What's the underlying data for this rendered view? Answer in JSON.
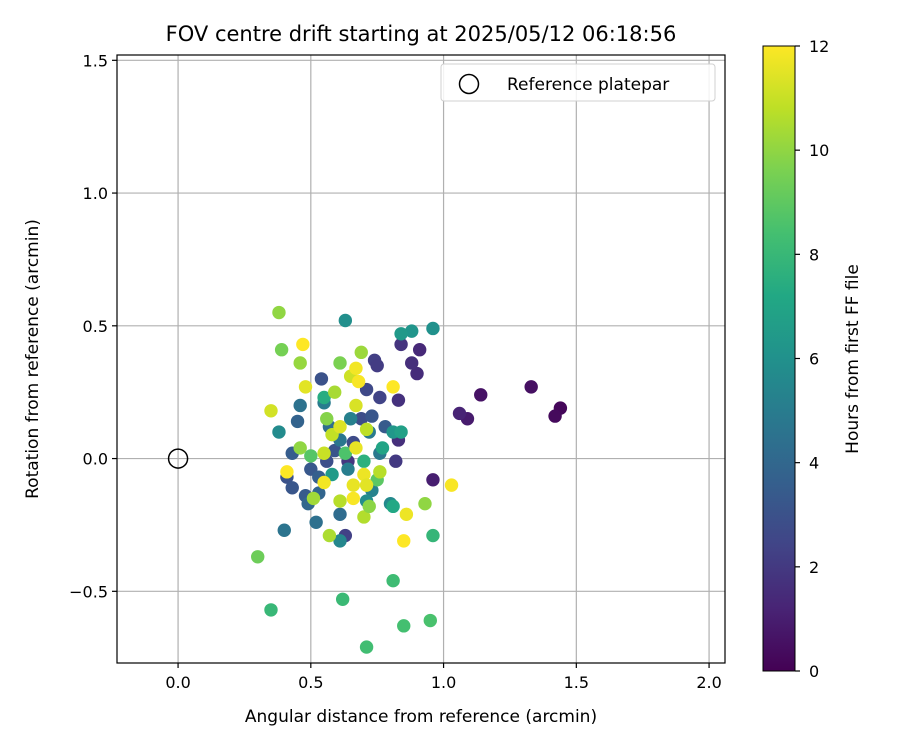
{
  "chart_data": {
    "type": "scatter",
    "title": "FOV centre drift starting at 2025/05/12 06:18:56",
    "xlabel": "Angular distance from reference (arcmin)",
    "ylabel": "Rotation from reference (arcmin)",
    "xlim": [
      -0.23,
      2.06
    ],
    "ylim": [
      -0.77,
      1.52
    ],
    "xticks": [
      0.0,
      0.5,
      1.0,
      1.5,
      2.0
    ],
    "xtick_labels": [
      "0.0",
      "0.5",
      "1.0",
      "1.5",
      "2.0"
    ],
    "yticks": [
      -0.5,
      0.0,
      0.5,
      1.0,
      1.5
    ],
    "ytick_labels": [
      "−0.5",
      "0.0",
      "0.5",
      "1.0",
      "1.5"
    ],
    "grid": true,
    "legend": {
      "placement": "top-right",
      "entries": [
        "Reference platepar"
      ]
    },
    "reference_point": {
      "x": 0.0,
      "y": 0.0,
      "label": "Reference platepar"
    },
    "colorbar": {
      "label": "Hours from first FF file",
      "colormap": "viridis",
      "range": [
        0,
        12
      ],
      "ticks": [
        0,
        2,
        4,
        6,
        8,
        10,
        12
      ],
      "tick_labels": [
        "0",
        "2",
        "4",
        "6",
        "8",
        "10",
        "12"
      ]
    },
    "points": [
      {
        "x": 1.44,
        "y": 0.19,
        "h": 0.2
      },
      {
        "x": 1.42,
        "y": 0.16,
        "h": 0.3
      },
      {
        "x": 1.33,
        "y": 0.27,
        "h": 0.5
      },
      {
        "x": 1.14,
        "y": 0.24,
        "h": 0.6
      },
      {
        "x": 1.09,
        "y": 0.15,
        "h": 0.9
      },
      {
        "x": 1.06,
        "y": 0.17,
        "h": 1.2
      },
      {
        "x": 0.96,
        "y": -0.08,
        "h": 1.0
      },
      {
        "x": 0.91,
        "y": 0.41,
        "h": 1.4
      },
      {
        "x": 0.9,
        "y": 0.32,
        "h": 1.5
      },
      {
        "x": 0.88,
        "y": 0.36,
        "h": 1.6
      },
      {
        "x": 0.84,
        "y": 0.43,
        "h": 1.8
      },
      {
        "x": 0.83,
        "y": 0.22,
        "h": 1.7
      },
      {
        "x": 0.83,
        "y": 0.07,
        "h": 1.6
      },
      {
        "x": 0.82,
        "y": -0.01,
        "h": 2.0
      },
      {
        "x": 0.74,
        "y": 0.37,
        "h": 2.2
      },
      {
        "x": 0.76,
        "y": 0.23,
        "h": 2.4
      },
      {
        "x": 0.75,
        "y": 0.35,
        "h": 2.1
      },
      {
        "x": 0.71,
        "y": 0.26,
        "h": 2.6
      },
      {
        "x": 0.64,
        "y": -0.01,
        "h": 1.9
      },
      {
        "x": 0.63,
        "y": -0.29,
        "h": 2.3
      },
      {
        "x": 0.54,
        "y": 0.3,
        "h": 3.0
      },
      {
        "x": 0.69,
        "y": 0.15,
        "h": 2.8
      },
      {
        "x": 0.73,
        "y": 0.16,
        "h": 3.2
      },
      {
        "x": 0.78,
        "y": 0.12,
        "h": 3.4
      },
      {
        "x": 0.66,
        "y": 0.06,
        "h": 2.7
      },
      {
        "x": 0.59,
        "y": 0.03,
        "h": 3.1
      },
      {
        "x": 0.56,
        "y": -0.01,
        "h": 2.9
      },
      {
        "x": 0.5,
        "y": -0.04,
        "h": 3.3
      },
      {
        "x": 0.53,
        "y": -0.07,
        "h": 3.6
      },
      {
        "x": 0.45,
        "y": 0.14,
        "h": 3.8
      },
      {
        "x": 0.43,
        "y": 0.02,
        "h": 3.5
      },
      {
        "x": 0.41,
        "y": -0.07,
        "h": 3.0
      },
      {
        "x": 0.43,
        "y": -0.11,
        "h": 3.2
      },
      {
        "x": 0.48,
        "y": -0.14,
        "h": 3.4
      },
      {
        "x": 0.49,
        "y": -0.17,
        "h": 4.0
      },
      {
        "x": 0.53,
        "y": -0.13,
        "h": 3.9
      },
      {
        "x": 0.52,
        "y": -0.24,
        "h": 4.4
      },
      {
        "x": 0.61,
        "y": -0.21,
        "h": 4.2
      },
      {
        "x": 0.4,
        "y": -0.27,
        "h": 4.6
      },
      {
        "x": 0.46,
        "y": 0.2,
        "h": 4.5
      },
      {
        "x": 0.57,
        "y": 0.12,
        "h": 4.3
      },
      {
        "x": 0.61,
        "y": 0.07,
        "h": 4.7
      },
      {
        "x": 0.55,
        "y": 0.21,
        "h": 5.0
      },
      {
        "x": 0.65,
        "y": 0.15,
        "h": 5.2
      },
      {
        "x": 0.72,
        "y": 0.1,
        "h": 4.9
      },
      {
        "x": 0.76,
        "y": 0.02,
        "h": 4.8
      },
      {
        "x": 0.73,
        "y": -0.12,
        "h": 5.3
      },
      {
        "x": 0.64,
        "y": -0.04,
        "h": 5.1
      },
      {
        "x": 0.61,
        "y": -0.31,
        "h": 5.5
      },
      {
        "x": 0.8,
        "y": -0.17,
        "h": 5.6
      },
      {
        "x": 0.71,
        "y": -0.16,
        "h": 5.8
      },
      {
        "x": 0.38,
        "y": 0.1,
        "h": 5.7
      },
      {
        "x": 0.63,
        "y": 0.52,
        "h": 5.9
      },
      {
        "x": 0.96,
        "y": 0.49,
        "h": 6.0
      },
      {
        "x": 0.88,
        "y": 0.48,
        "h": 6.2
      },
      {
        "x": 0.84,
        "y": 0.47,
        "h": 6.4
      },
      {
        "x": 0.81,
        "y": 0.1,
        "h": 6.3
      },
      {
        "x": 0.84,
        "y": 0.1,
        "h": 6.8
      },
      {
        "x": 0.77,
        "y": 0.04,
        "h": 7.0
      },
      {
        "x": 0.81,
        "y": -0.18,
        "h": 7.2
      },
      {
        "x": 0.58,
        "y": -0.06,
        "h": 6.5
      },
      {
        "x": 0.55,
        "y": 0.23,
        "h": 7.4
      },
      {
        "x": 0.7,
        "y": -0.01,
        "h": 7.6
      },
      {
        "x": 0.96,
        "y": -0.29,
        "h": 7.9
      },
      {
        "x": 0.35,
        "y": -0.57,
        "h": 8.0
      },
      {
        "x": 0.62,
        "y": -0.53,
        "h": 8.1
      },
      {
        "x": 0.71,
        "y": -0.71,
        "h": 8.3
      },
      {
        "x": 0.81,
        "y": -0.46,
        "h": 8.2
      },
      {
        "x": 0.85,
        "y": -0.63,
        "h": 8.4
      },
      {
        "x": 0.95,
        "y": -0.61,
        "h": 8.5
      },
      {
        "x": 0.63,
        "y": 0.02,
        "h": 8.6
      },
      {
        "x": 0.5,
        "y": 0.01,
        "h": 8.8
      },
      {
        "x": 0.75,
        "y": -0.08,
        "h": 8.9
      },
      {
        "x": 0.3,
        "y": -0.37,
        "h": 9.3
      },
      {
        "x": 0.39,
        "y": 0.41,
        "h": 9.5
      },
      {
        "x": 0.38,
        "y": 0.55,
        "h": 10.0
      },
      {
        "x": 0.46,
        "y": 0.36,
        "h": 10.1
      },
      {
        "x": 0.61,
        "y": 0.36,
        "h": 9.6
      },
      {
        "x": 0.69,
        "y": 0.4,
        "h": 10.2
      },
      {
        "x": 0.59,
        "y": 0.25,
        "h": 10.4
      },
      {
        "x": 0.56,
        "y": 0.15,
        "h": 9.8
      },
      {
        "x": 0.46,
        "y": 0.04,
        "h": 10.0
      },
      {
        "x": 0.51,
        "y": -0.15,
        "h": 10.3
      },
      {
        "x": 0.57,
        "y": -0.29,
        "h": 10.5
      },
      {
        "x": 0.7,
        "y": -0.22,
        "h": 10.6
      },
      {
        "x": 0.72,
        "y": -0.18,
        "h": 9.9
      },
      {
        "x": 0.93,
        "y": -0.17,
        "h": 10.0
      },
      {
        "x": 0.76,
        "y": -0.05,
        "h": 10.7
      },
      {
        "x": 0.71,
        "y": 0.11,
        "h": 10.8
      },
      {
        "x": 0.58,
        "y": 0.09,
        "h": 10.9
      },
      {
        "x": 0.55,
        "y": 0.02,
        "h": 11.0
      },
      {
        "x": 0.61,
        "y": -0.16,
        "h": 10.7
      },
      {
        "x": 0.65,
        "y": 0.31,
        "h": 11.1
      },
      {
        "x": 0.67,
        "y": 0.2,
        "h": 11.3
      },
      {
        "x": 0.48,
        "y": 0.27,
        "h": 11.5
      },
      {
        "x": 0.35,
        "y": 0.18,
        "h": 11.2
      },
      {
        "x": 0.61,
        "y": 0.12,
        "h": 11.4
      },
      {
        "x": 0.67,
        "y": 0.04,
        "h": 11.6
      },
      {
        "x": 0.7,
        "y": -0.06,
        "h": 11.7
      },
      {
        "x": 0.55,
        "y": -0.09,
        "h": 11.8
      },
      {
        "x": 0.66,
        "y": -0.1,
        "h": 11.6
      },
      {
        "x": 0.71,
        "y": -0.1,
        "h": 11.5
      },
      {
        "x": 0.66,
        "y": -0.15,
        "h": 11.9
      },
      {
        "x": 0.86,
        "y": -0.21,
        "h": 11.7
      },
      {
        "x": 0.85,
        "y": -0.31,
        "h": 12.0
      },
      {
        "x": 1.03,
        "y": -0.1,
        "h": 11.9
      },
      {
        "x": 0.81,
        "y": 0.27,
        "h": 12.0
      },
      {
        "x": 0.67,
        "y": 0.34,
        "h": 11.8
      },
      {
        "x": 0.47,
        "y": 0.43,
        "h": 12.0
      },
      {
        "x": 0.41,
        "y": -0.05,
        "h": 12.0
      },
      {
        "x": 0.68,
        "y": 0.29,
        "h": 11.9
      }
    ]
  }
}
